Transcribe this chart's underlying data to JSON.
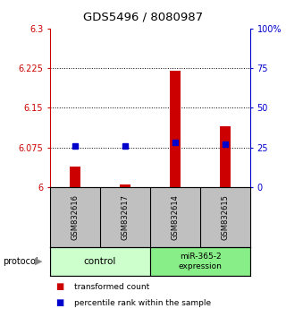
{
  "title": "GDS5496 / 8080987",
  "samples": [
    "GSM832616",
    "GSM832617",
    "GSM832614",
    "GSM832615"
  ],
  "red_values": [
    6.038,
    6.005,
    6.22,
    6.115
  ],
  "blue_values": [
    26.0,
    26.0,
    28.0,
    27.0
  ],
  "ylim_left": [
    6.0,
    6.3
  ],
  "ylim_right": [
    0,
    100
  ],
  "yticks_left": [
    6.0,
    6.075,
    6.15,
    6.225,
    6.3
  ],
  "ytick_labels_left": [
    "6",
    "6.075",
    "6.15",
    "6.225",
    "6.3"
  ],
  "yticks_right": [
    0,
    25,
    50,
    75,
    100
  ],
  "ytick_labels_right": [
    "0",
    "25",
    "50",
    "75",
    "100%"
  ],
  "hlines": [
    6.075,
    6.15,
    6.225
  ],
  "left_color": "#cc0000",
  "right_color": "#0000cc",
  "plot_bg": "#ffffff",
  "sample_bg": "#c0c0c0",
  "ctrl_color": "#ccffcc",
  "mir_color": "#88ee88",
  "legend_red": "transformed count",
  "legend_blue": "percentile rank within the sample",
  "protocol_label": "protocol",
  "ctrl_label": "control",
  "mir_label": "miR-365-2\nexpression",
  "title_fontsize": 9.5,
  "tick_fontsize": 7,
  "sample_fontsize": 6,
  "legend_fontsize": 6.5,
  "bar_width": 0.22
}
